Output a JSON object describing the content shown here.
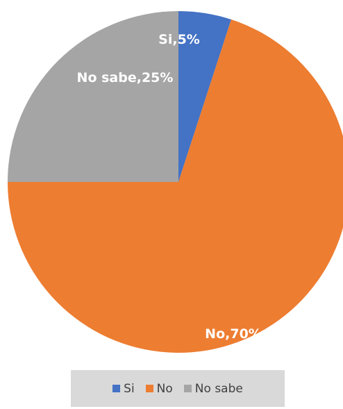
{
  "chart_data": {
    "type": "pie",
    "categories": [
      "Si",
      "No",
      "No sabe"
    ],
    "values": [
      5,
      70,
      25
    ],
    "colors": [
      "#4472C4",
      "#ED7D31",
      "#A5A5A5"
    ],
    "data_labels": [
      "Si,5%",
      "No,70%",
      "No sabe,25%"
    ],
    "start_angle_deg": 0,
    "direction": "clockwise",
    "legend": {
      "placement": "bottom",
      "entries": [
        "Si",
        "No",
        "No sabe"
      ]
    }
  }
}
